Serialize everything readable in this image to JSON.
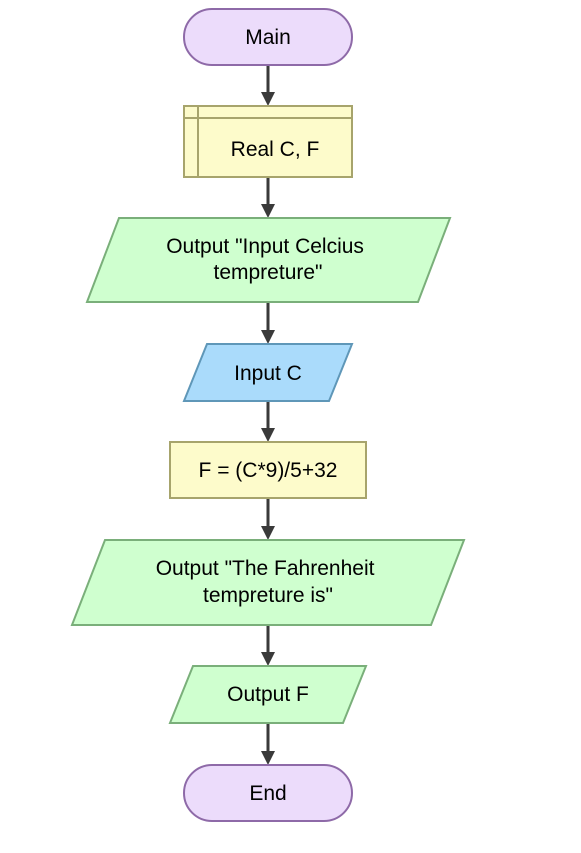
{
  "flowchart": {
    "colors": {
      "terminal_fill": "#ecdcfb",
      "terminal_stroke": "#8e6aa8",
      "declare_fill": "#fdfbcb",
      "declare_stroke": "#a7a46c",
      "process_fill": "#fdfbcb",
      "process_stroke": "#a7a46c",
      "output_fill": "#cfffcf",
      "output_stroke": "#7aaf7a",
      "input_fill": "#aadbfb",
      "input_stroke": "#5f97b8",
      "arrow": "#3a3a3a"
    },
    "nodes": [
      {
        "id": "main",
        "kind": "terminal",
        "lines": [
          "Main"
        ]
      },
      {
        "id": "declare",
        "kind": "declare",
        "lines": [
          "Real C, F"
        ]
      },
      {
        "id": "output-prompt",
        "kind": "output",
        "lines": [
          "Output \"Input Celcius",
          "tempreture\""
        ]
      },
      {
        "id": "input-c",
        "kind": "input",
        "lines": [
          "Input C"
        ]
      },
      {
        "id": "assign-f",
        "kind": "process",
        "lines": [
          "F = (C*9)/5+32"
        ]
      },
      {
        "id": "output-message",
        "kind": "output",
        "lines": [
          "Output \"The Fahrenheit",
          "tempreture is\""
        ]
      },
      {
        "id": "output-f",
        "kind": "output",
        "lines": [
          "Output F"
        ]
      },
      {
        "id": "end",
        "kind": "terminal",
        "lines": [
          "End"
        ]
      }
    ]
  }
}
